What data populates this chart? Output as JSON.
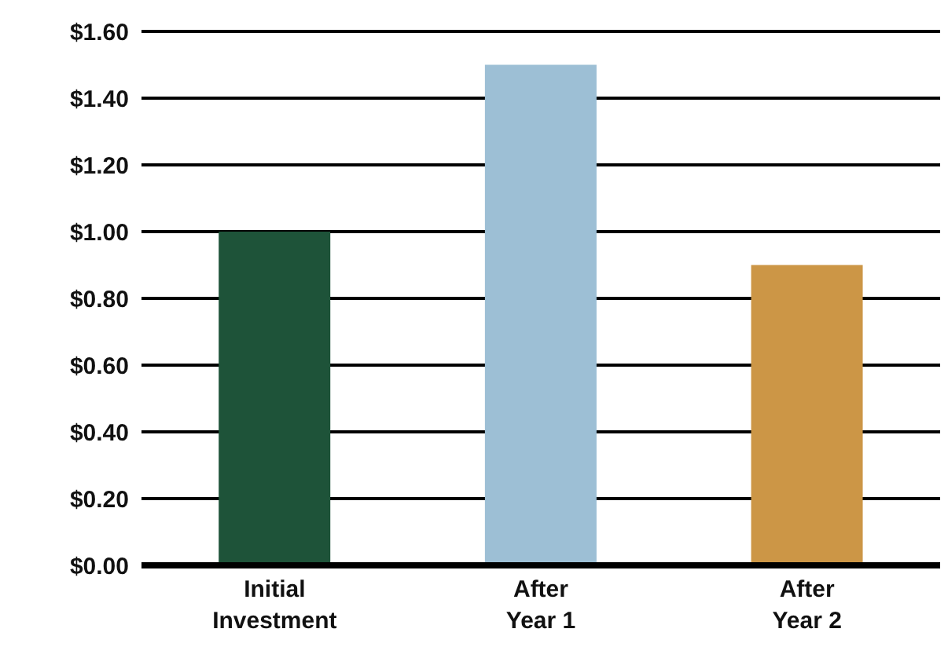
{
  "chart_data": {
    "type": "bar",
    "categories": [
      "Initial Investment",
      "After Year 1",
      "After Year 2"
    ],
    "values": [
      1.0,
      1.5,
      0.9
    ],
    "colors": [
      "#1e5339",
      "#9dbfd5",
      "#cc9646"
    ],
    "ylim": [
      0,
      1.6
    ],
    "yticks": [
      {
        "value": 0,
        "label": "$0.00"
      },
      {
        "value": 0.2,
        "label": "$0.20"
      },
      {
        "value": 0.4,
        "label": "$0.40"
      },
      {
        "value": 0.6,
        "label": "$0.60"
      },
      {
        "value": 0.8,
        "label": "$0.80"
      },
      {
        "value": 1.0,
        "label": "$1.00"
      },
      {
        "value": 1.2,
        "label": "$1.20"
      },
      {
        "value": 1.4,
        "label": "$1.40"
      },
      {
        "value": 1.6,
        "label": "$1.60"
      }
    ],
    "grid": "y"
  }
}
